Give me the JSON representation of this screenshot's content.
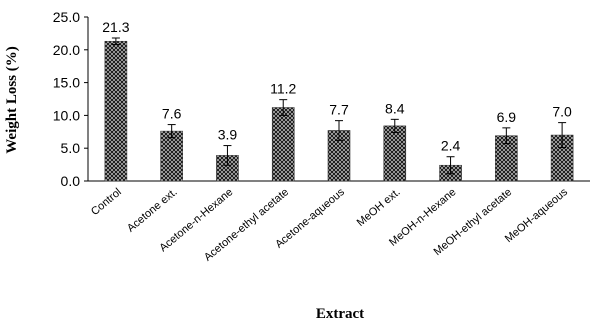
{
  "chart_data": {
    "type": "bar",
    "categories": [
      "Control",
      "Acetone ext.",
      "Acetone-n-Hexane",
      "Acetone-ethyl acetate",
      "Acetone-aqueous",
      "MeOH ext.",
      "MeOH-n-Hexane",
      "MeOH-ethyl acetate",
      "MeOH-aqueous"
    ],
    "values": [
      21.3,
      7.6,
      3.9,
      11.2,
      7.7,
      8.4,
      2.4,
      6.9,
      7.0
    ],
    "value_labels": [
      "21.3",
      "7.6",
      "3.9",
      "11.2",
      "7.7",
      "8.4",
      "2.4",
      "6.9",
      "7.0"
    ],
    "error": [
      0.5,
      1.0,
      1.5,
      1.2,
      1.5,
      1.0,
      1.3,
      1.2,
      1.9
    ],
    "ylabel": "Weight Loss (%)",
    "xlabel": "Extract",
    "ylim": [
      0,
      25
    ],
    "yticks": [
      "0.0",
      "5.0",
      "10.0",
      "15.0",
      "20.0",
      "25.0"
    ],
    "grid": false,
    "legend": "none",
    "bar_fill": "crosshatch",
    "colors": {
      "bar_dark": "#1a1a1a",
      "bar_light": "#e8e8e8",
      "axis": "#000000"
    }
  }
}
